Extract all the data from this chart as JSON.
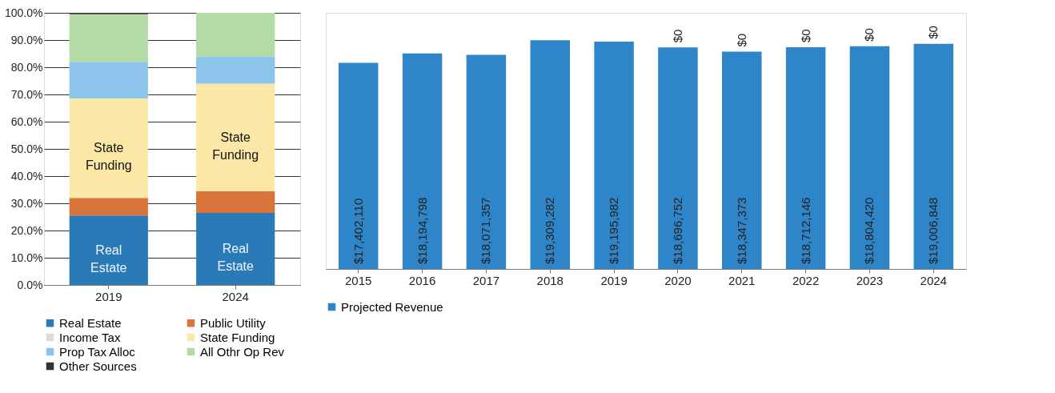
{
  "chart_data": [
    {
      "type": "bar",
      "stacked": true,
      "categories": [
        "2019",
        "2024"
      ],
      "series": [
        {
          "name": "Real Estate",
          "color": "#2a7ab8",
          "values": [
            25.5,
            26.5
          ]
        },
        {
          "name": "Public Utility",
          "color": "#d9743a",
          "values": [
            6.5,
            8
          ]
        },
        {
          "name": "Income Tax",
          "color": "#dcdcdc",
          "values": [
            0,
            0
          ]
        },
        {
          "name": "State Funding",
          "color": "#fbe8a6",
          "values": [
            36.5,
            39.5
          ]
        },
        {
          "name": "Prop Tax Alloc",
          "color": "#8cc4ec",
          "values": [
            13.5,
            10
          ]
        },
        {
          "name": "All Othr Op Rev",
          "color": "#b4dba6",
          "values": [
            17.5,
            16
          ]
        },
        {
          "name": "Other Sources",
          "color": "#333333",
          "values": [
            0.5,
            0
          ]
        }
      ],
      "ylim": [
        0,
        100
      ],
      "yticks": [
        {
          "value": 0,
          "label": "0.0%"
        },
        {
          "value": 10,
          "label": "10.0%"
        },
        {
          "value": 20,
          "label": "20.0%"
        },
        {
          "value": 30,
          "label": "30.0%"
        },
        {
          "value": 40,
          "label": "40.0%"
        },
        {
          "value": 50,
          "label": "50.0%"
        },
        {
          "value": 60,
          "label": "60.0%"
        },
        {
          "value": 70,
          "label": "70.0%"
        },
        {
          "value": 80,
          "label": "80.0%"
        },
        {
          "value": 90,
          "label": "90.0%"
        },
        {
          "value": 100,
          "label": "100.0%"
        }
      ],
      "grid": "y",
      "legend": "bottom",
      "annotations": [
        "State Funding",
        "Real Estate",
        "State Funding",
        "Real Estate"
      ]
    },
    {
      "type": "bar",
      "stacked": true,
      "categories": [
        "2015",
        "2016",
        "2017",
        "2018",
        "2019",
        "2020",
        "2021",
        "2022",
        "2023",
        "2024"
      ],
      "series": [
        {
          "name": "Projected Revenue",
          "color": "#2e86c8",
          "values": [
            17402110,
            18194798,
            18071357,
            19309282,
            19195982,
            18696752,
            18347373,
            18712146,
            18804420,
            19006848
          ],
          "value_labels": [
            "$17,402,110",
            "$18,194,798",
            "$18,071,357",
            "$19,309,282",
            "$19,195,982",
            "$18,696,752",
            "$18,347,373",
            "$18,712,146",
            "$18,804,420",
            "$19,006,848"
          ]
        },
        {
          "color": "#2e86c8",
          "values": [
            null,
            null,
            null,
            null,
            null,
            0,
            0,
            0,
            0,
            0
          ],
          "value_labels": [
            null,
            null,
            null,
            null,
            null,
            "$0",
            "$0",
            "$0",
            "$0",
            "$0"
          ]
        }
      ],
      "grid": false,
      "legend": "bottom"
    }
  ]
}
